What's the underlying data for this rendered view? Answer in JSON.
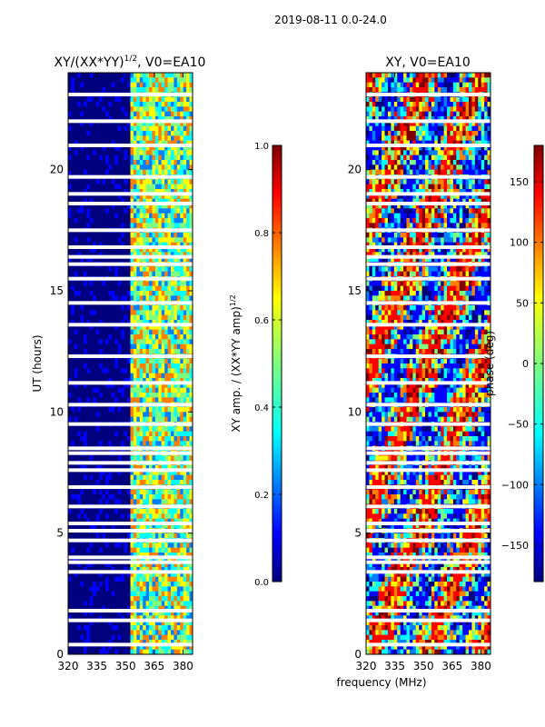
{
  "figure": {
    "title": "2019-08-11 0.0-24.0"
  },
  "colors": {
    "jet": [
      "#00007f",
      "#0000ff",
      "#007fff",
      "#00ffff",
      "#7fff7f",
      "#ffff00",
      "#ff7f00",
      "#ff0000",
      "#7f0000"
    ],
    "background": "#ffffff"
  },
  "chart_data": [
    {
      "type": "heatmap",
      "title": "XY/(XX*YY)",
      "title_superscript": "1/2",
      "title_suffix": ", V0=EA10",
      "xlabel": "",
      "ylabel": "UT (hours)",
      "xlim": [
        320,
        385
      ],
      "ylim": [
        0,
        24
      ],
      "xticks": [
        320,
        335,
        350,
        365,
        380
      ],
      "yticks": [
        0,
        5,
        10,
        15,
        20
      ],
      "colorbar": {
        "label": "XY amp. / (XX*YY amp)",
        "label_superscript": "1/2",
        "range": [
          0.0,
          1.0
        ],
        "ticks": [
          "0.0",
          "0.2",
          "0.4",
          "0.6",
          "0.8",
          "1.0"
        ],
        "tick_values": [
          0.0,
          0.2,
          0.4,
          0.6,
          0.8,
          1.0
        ]
      },
      "flagged_ut_hours": [
        23.1,
        22.0,
        21.0,
        19.7,
        19.0,
        18.6,
        17.5,
        16.8,
        16.4,
        16.1,
        15.5,
        14.5,
        13.6,
        12.3,
        11.2,
        10.3,
        9.5,
        8.5,
        8.3,
        7.9,
        7.6,
        6.9,
        6.1,
        5.4,
        5.1,
        4.7,
        4.0,
        3.8,
        3.4,
        1.8,
        1.4,
        0.4
      ],
      "band_description": "low amplitude (~0.0) below ~352 MHz; high amplitude (~0.3-0.7) between ~352-385 MHz"
    },
    {
      "type": "heatmap",
      "title": "XY, V0=EA10",
      "xlabel": "frequency (MHz)",
      "ylabel": "",
      "xlim": [
        320,
        385
      ],
      "ylim": [
        0,
        24
      ],
      "xticks": [
        320,
        335,
        350,
        365,
        380
      ],
      "yticks": [
        0,
        5,
        10,
        15,
        20
      ],
      "colorbar": {
        "label": "phase (deg)",
        "range": [
          -180,
          180
        ],
        "ticks": [
          "−150",
          "−100",
          "−50",
          "0",
          "50",
          "100",
          "150"
        ],
        "tick_values": [
          -150,
          -100,
          -50,
          0,
          50,
          100,
          150
        ]
      },
      "flagged_ut_hours": [
        23.1,
        22.0,
        21.0,
        19.7,
        19.0,
        18.6,
        17.5,
        16.8,
        16.4,
        16.1,
        15.5,
        14.5,
        13.6,
        12.3,
        11.2,
        10.3,
        9.5,
        8.5,
        8.3,
        7.9,
        7.6,
        6.9,
        6.1,
        5.4,
        5.1,
        4.7,
        4.0,
        3.8,
        3.4,
        1.8,
        1.4,
        0.4
      ],
      "band_description": "phase values spanning -180 to 180 deg across full band"
    }
  ]
}
